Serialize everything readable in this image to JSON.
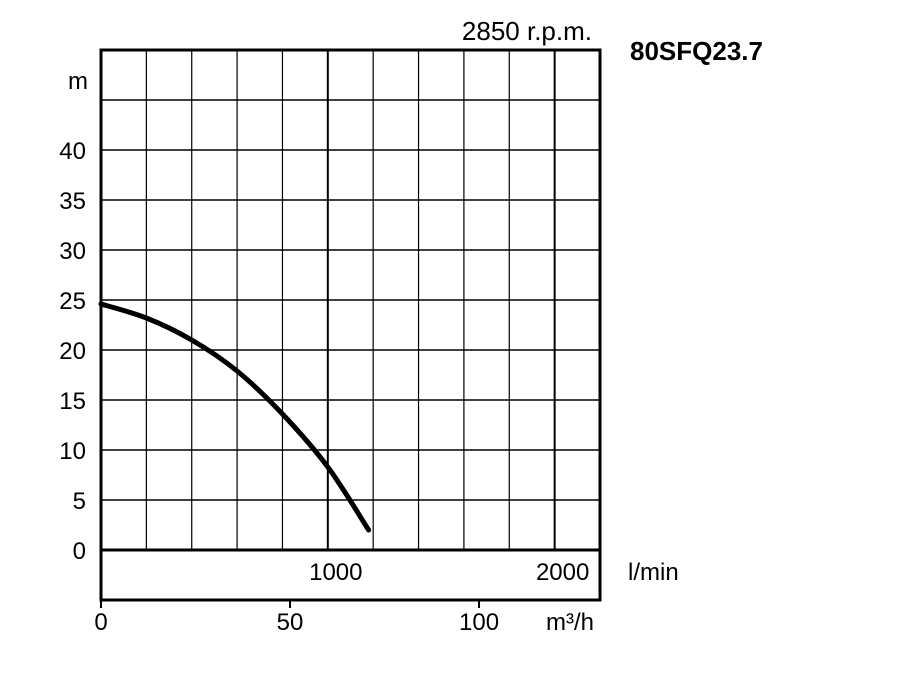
{
  "chart_data": {
    "type": "line",
    "model": "80SFQ23.7",
    "speed_label": "2850 r.p.m.",
    "y_unit": "m",
    "x_unit_flow": "l/min",
    "x_unit_vol": "m³/h",
    "ylim": [
      0,
      50
    ],
    "y_ticks": [
      0,
      5,
      10,
      15,
      20,
      25,
      30,
      35,
      40
    ],
    "xlim_lmin": [
      0,
      2200
    ],
    "x_ticks_lmin": [
      1000,
      2000
    ],
    "x_ticks_m3h": [
      0,
      50,
      100
    ],
    "grid": true,
    "series": [
      {
        "x": [
          0,
          200,
          400,
          600,
          800,
          1000,
          1180
        ],
        "y": [
          24.6,
          23.2,
          21.0,
          17.9,
          13.6,
          8.3,
          2.0
        ]
      }
    ]
  }
}
